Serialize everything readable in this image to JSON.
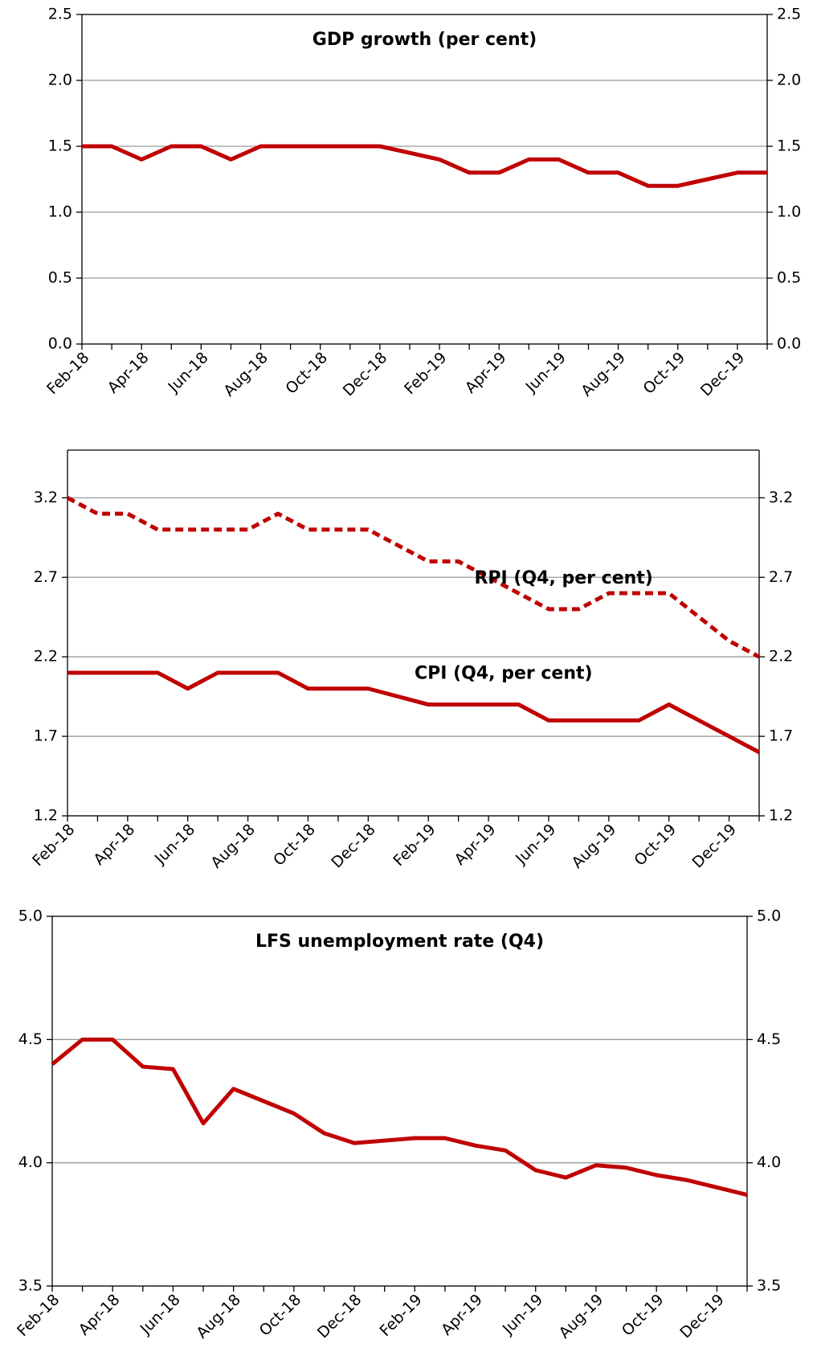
{
  "chart_data": [
    {
      "type": "line",
      "title": "GDP growth (per cent)",
      "categories": [
        "Feb-18",
        null,
        "Apr-18",
        null,
        "Jun-18",
        null,
        "Aug-18",
        null,
        "Oct-18",
        null,
        "Dec-18",
        null,
        "Feb-19",
        null,
        "Apr-19",
        null,
        "Jun-19",
        null,
        "Aug-19",
        null,
        "Oct-19",
        null,
        "Dec-19",
        null
      ],
      "series": [
        {
          "color": "#c00000",
          "values": [
            1.5,
            1.5,
            1.4,
            1.5,
            1.5,
            1.4,
            1.5,
            1.5,
            1.5,
            1.5,
            1.5,
            1.45,
            1.4,
            1.3,
            1.3,
            1.4,
            1.4,
            1.3,
            1.3,
            1.2,
            1.2,
            1.25,
            1.3,
            1.3
          ]
        }
      ],
      "ylim": [
        0,
        2.5
      ],
      "yticks": [
        {
          "value": 0,
          "label": "0.0"
        },
        0.5,
        {
          "value": 1,
          "label": "1.0"
        },
        1.5,
        {
          "value": 2,
          "label": "2.0"
        },
        2.5
      ],
      "grid": true
    },
    {
      "type": "line",
      "categories": [
        "Feb-18",
        null,
        "Apr-18",
        null,
        "Jun-18",
        null,
        "Aug-18",
        null,
        "Oct-18",
        null,
        "Dec-18",
        null,
        "Feb-19",
        null,
        "Apr-19",
        null,
        "Jun-19",
        null,
        "Aug-19",
        null,
        "Oct-19",
        null,
        "Dec-19",
        null
      ],
      "series": [
        {
          "name": "RPI (Q4, per cent)",
          "color": "#c00000",
          "dashed": true,
          "values": [
            3.2,
            3.1,
            3.1,
            3.0,
            3.0,
            3.0,
            3.0,
            3.1,
            3.0,
            3.0,
            3.0,
            2.9,
            2.8,
            2.8,
            2.7,
            2.6,
            2.5,
            2.5,
            2.6,
            2.6,
            2.6,
            2.45,
            2.3,
            2.2
          ]
        },
        {
          "name": "CPI (Q4, per cent)",
          "color": "#c00000",
          "values": [
            2.1,
            2.1,
            2.1,
            2.1,
            2.0,
            2.1,
            2.1,
            2.1,
            2.0,
            2.0,
            2.0,
            1.95,
            1.9,
            1.9,
            1.9,
            1.9,
            1.8,
            1.8,
            1.8,
            1.8,
            1.9,
            1.8,
            1.7,
            1.6
          ]
        }
      ],
      "ylim": [
        1.2,
        3.5
      ],
      "yticks": [
        1.2,
        1.7,
        2.2,
        2.7,
        3.2
      ],
      "grid": true
    },
    {
      "type": "line",
      "title": "LFS unemployment rate (Q4)",
      "categories": [
        "Feb-18",
        null,
        "Apr-18",
        null,
        "Jun-18",
        null,
        "Aug-18",
        null,
        "Oct-18",
        null,
        "Dec-18",
        null,
        "Feb-19",
        null,
        "Apr-19",
        null,
        "Jun-19",
        null,
        "Aug-19",
        null,
        "Oct-19",
        null,
        "Dec-19",
        null
      ],
      "series": [
        {
          "color": "#c00000",
          "values": [
            4.4,
            4.5,
            4.5,
            4.39,
            4.38,
            4.16,
            4.3,
            4.25,
            4.2,
            4.12,
            4.08,
            4.09,
            4.1,
            4.1,
            4.07,
            4.05,
            3.97,
            3.94,
            3.99,
            3.98,
            3.95,
            3.93,
            3.9,
            3.87
          ]
        }
      ],
      "ylim": [
        3.5,
        5
      ],
      "yticks": [
        3.5,
        {
          "value": 4,
          "label": "4.0"
        },
        4.5,
        {
          "value": 5,
          "label": "5.0"
        }
      ],
      "grid": true
    }
  ]
}
